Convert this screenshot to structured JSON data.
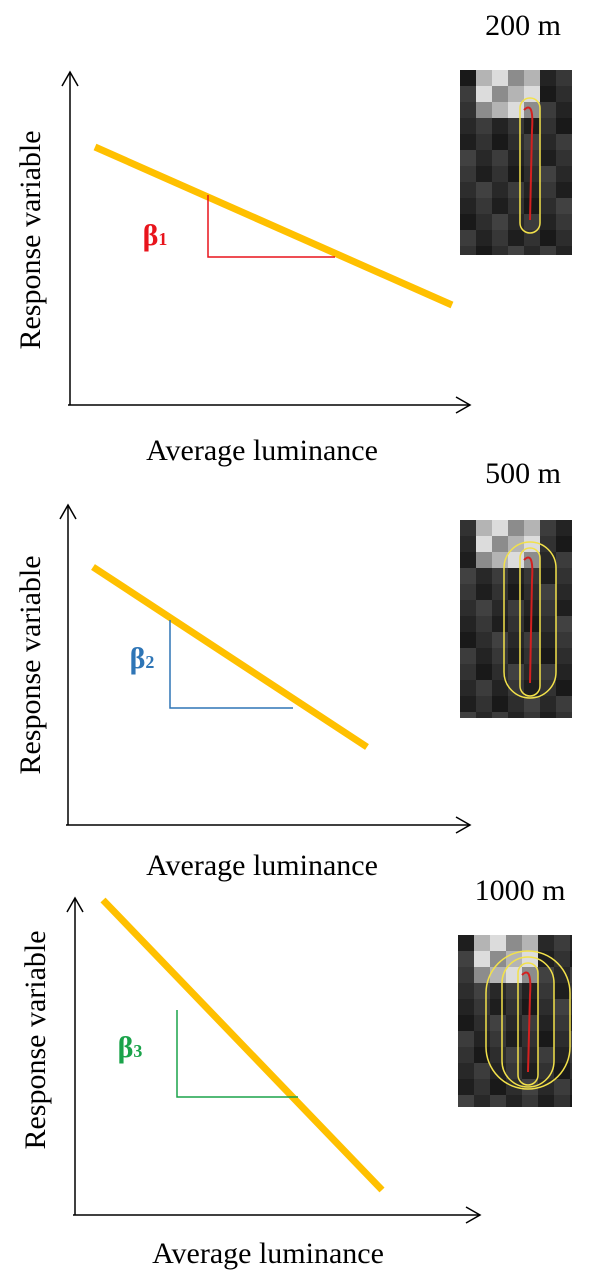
{
  "panels": [
    {
      "distance": "200 m",
      "y_label": "Response variable",
      "x_label": "Average luminance",
      "beta": "β",
      "index": "1"
    },
    {
      "distance": "500 m",
      "y_label": "Response variable",
      "x_label": "Average luminance",
      "beta": "β",
      "index": "2"
    },
    {
      "distance": "1000 m",
      "y_label": "Response variable",
      "x_label": "Average luminance",
      "beta": "β",
      "index": "3"
    }
  ]
}
